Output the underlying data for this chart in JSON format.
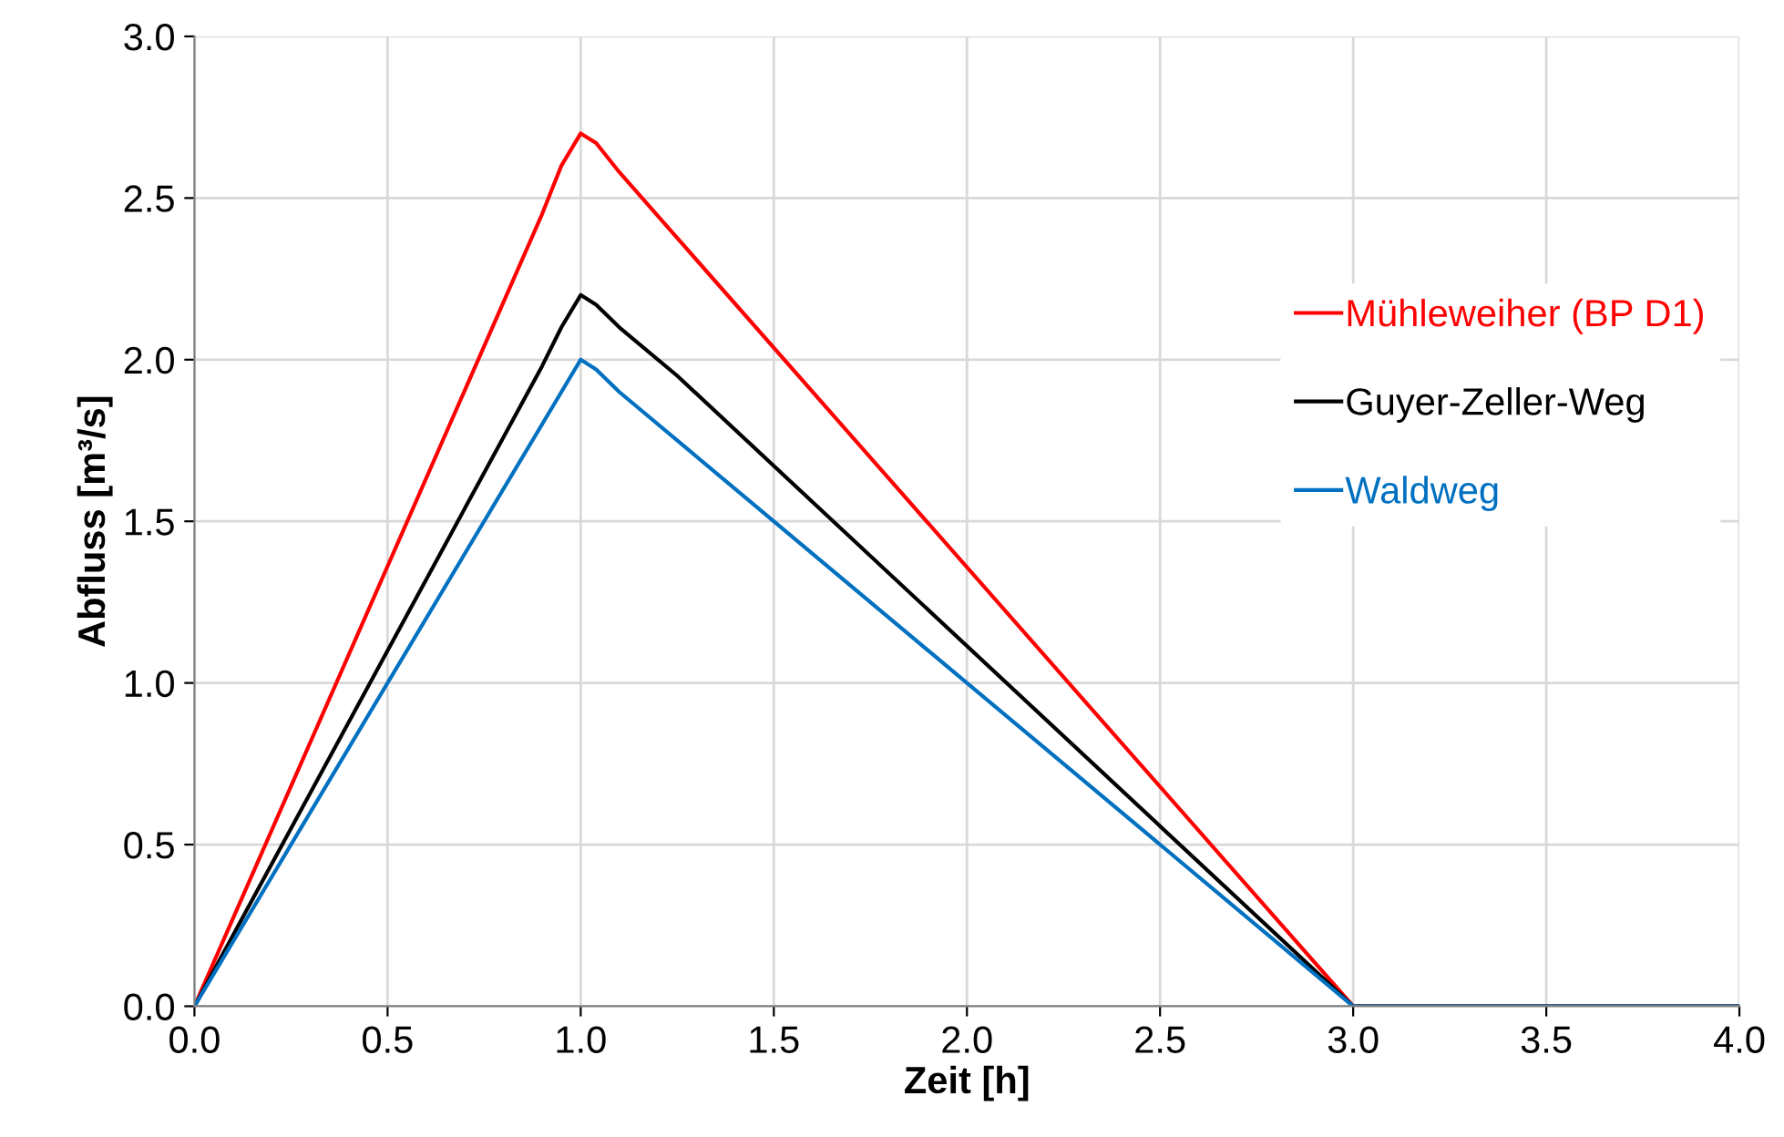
{
  "chart_data": {
    "type": "line",
    "xlabel": "Zeit [h]",
    "ylabel": "Abfluss [m³/s]",
    "xlim": [
      0,
      4
    ],
    "ylim": [
      0,
      3
    ],
    "xticks": [
      {
        "value": 0,
        "label": "0.0"
      },
      0.5,
      {
        "value": 1,
        "label": "1.0"
      },
      1.5,
      {
        "value": 2,
        "label": "2.0"
      },
      2.5,
      {
        "value": 3,
        "label": "3.0"
      },
      3.5,
      {
        "value": 4,
        "label": "4.0"
      }
    ],
    "yticks": [
      {
        "value": 0,
        "label": "0.0"
      },
      0.5,
      {
        "value": 1,
        "label": "1.0"
      },
      1.5,
      {
        "value": 2,
        "label": "2.0"
      },
      2.5,
      {
        "value": 3,
        "label": "3.0"
      }
    ],
    "grid": true,
    "legend": "right",
    "marker": "none",
    "line_style": "solid",
    "series": [
      {
        "name": "Mühleweiher (BP D1)",
        "color": "#ff0000",
        "x": [
          0,
          0.9,
          0.95,
          1.0,
          1.04,
          1.1,
          3.0,
          4.0
        ],
        "values": [
          0,
          2.45,
          2.6,
          2.7,
          2.67,
          2.58,
          0,
          0
        ]
      },
      {
        "name": "Guyer-Zeller-Weg",
        "color": "#000000",
        "x": [
          0,
          0.9,
          0.95,
          1.0,
          1.04,
          1.1,
          1.25,
          3.0,
          4.0
        ],
        "values": [
          0,
          1.98,
          2.1,
          2.2,
          2.17,
          2.1,
          1.95,
          0,
          0
        ]
      },
      {
        "name": "Waldweg",
        "color": "#0070c0",
        "x": [
          0,
          0.9,
          0.95,
          1.0,
          1.04,
          1.1,
          3.0,
          4.0
        ],
        "values": [
          0,
          1.8,
          1.9,
          2.0,
          1.97,
          1.9,
          0,
          0
        ]
      }
    ]
  }
}
